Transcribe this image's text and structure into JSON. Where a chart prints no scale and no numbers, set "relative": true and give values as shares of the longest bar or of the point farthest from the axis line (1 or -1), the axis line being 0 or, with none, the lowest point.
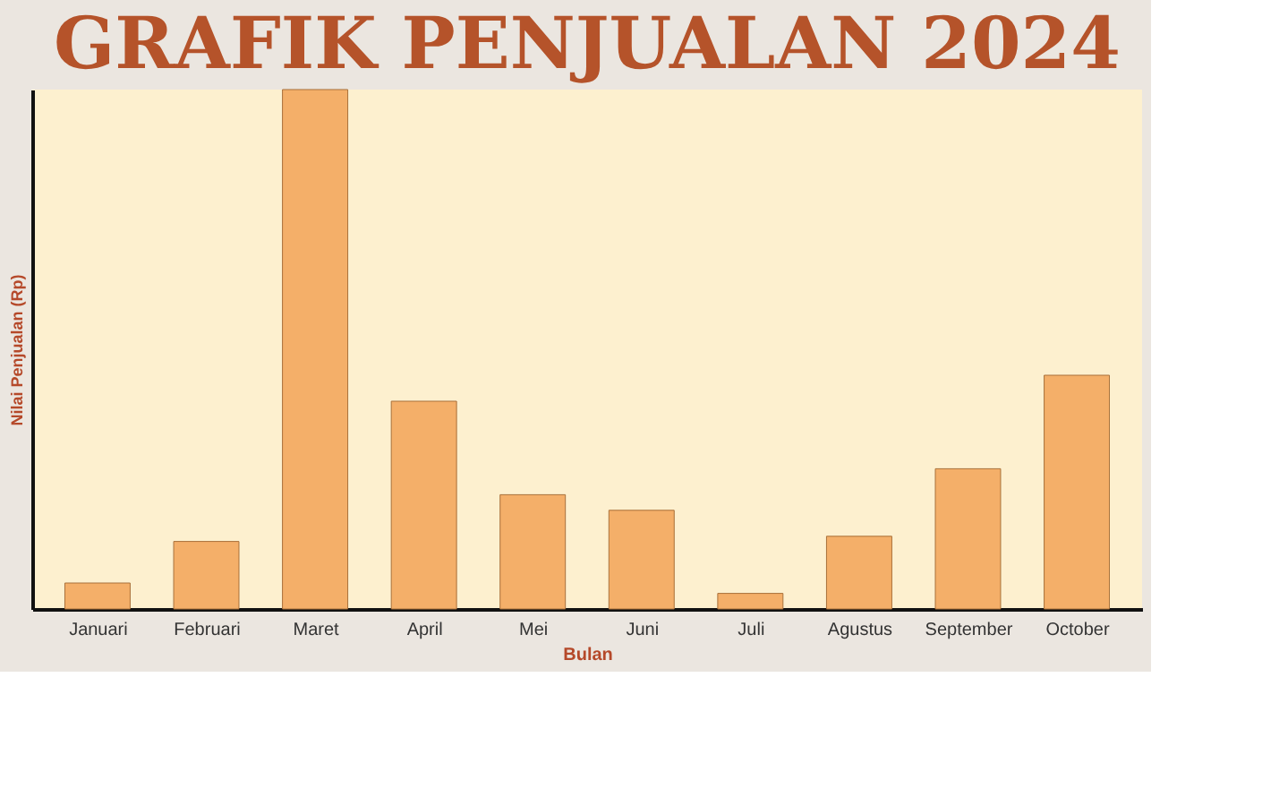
{
  "chart_data": {
    "type": "bar",
    "title": "GRAFIK PENJUALAN 2024",
    "xlabel": "Bulan",
    "ylabel": "Nilai Penjualan (Rp)",
    "categories": [
      "Januari",
      "Februari",
      "Maret",
      "April",
      "Mei",
      "Juni",
      "Juli",
      "Agustus",
      "September",
      "October"
    ],
    "values": [
      0.05,
      0.13,
      1,
      0.4,
      0.22,
      0.19,
      0.03,
      0.14,
      0.27,
      0.45
    ],
    "color": "#f4af69",
    "relative": true
  }
}
